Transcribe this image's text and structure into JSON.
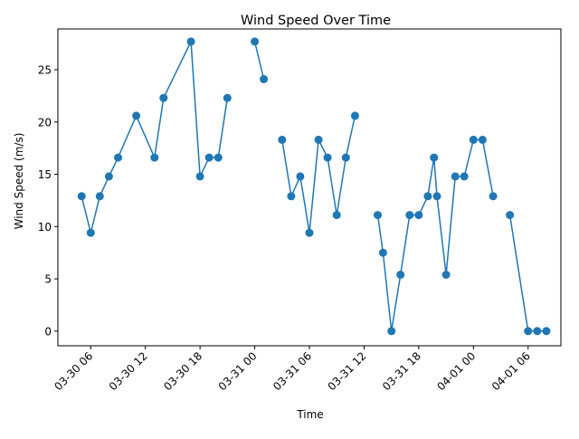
{
  "chart_data": {
    "type": "line",
    "title": "Wind Speed Over Time",
    "xlabel": "Time",
    "ylabel": "Wind Speed (m/s)",
    "xlim": [
      "2024-03-30 02:24",
      "2024-04-01 09:36"
    ],
    "ylim": [
      -1.4,
      28.9
    ],
    "grid": false,
    "x_ticks": [
      {
        "t": "2024-03-30 06:00",
        "label": "03-30 06"
      },
      {
        "t": "2024-03-30 12:00",
        "label": "03-30 12"
      },
      {
        "t": "2024-03-30 18:00",
        "label": "03-30 18"
      },
      {
        "t": "2024-03-31 00:00",
        "label": "03-31 00"
      },
      {
        "t": "2024-03-31 06:00",
        "label": "03-31 06"
      },
      {
        "t": "2024-03-31 12:00",
        "label": "03-31 12"
      },
      {
        "t": "2024-03-31 18:00",
        "label": "03-31 18"
      },
      {
        "t": "2024-04-01 00:00",
        "label": "04-01 00"
      },
      {
        "t": "2024-04-01 06:00",
        "label": "04-01 06"
      }
    ],
    "y_ticks": [
      0,
      5,
      10,
      15,
      20,
      25
    ],
    "series": [
      {
        "color": "#1f77b4",
        "segments": [
          [
            {
              "x": "2024-03-30 05:00",
              "y": 12.9
            },
            {
              "x": "2024-03-30 06:00",
              "y": 9.4
            },
            {
              "x": "2024-03-30 07:00",
              "y": 12.9
            },
            {
              "x": "2024-03-30 08:00",
              "y": 14.8
            },
            {
              "x": "2024-03-30 09:00",
              "y": 16.6
            },
            {
              "x": "2024-03-30 11:00",
              "y": 20.6
            },
            {
              "x": "2024-03-30 13:00",
              "y": 16.6
            },
            {
              "x": "2024-03-30 14:00",
              "y": 22.3
            },
            {
              "x": "2024-03-30 17:00",
              "y": 27.7
            },
            {
              "x": "2024-03-30 18:00",
              "y": 14.8
            },
            {
              "x": "2024-03-30 19:00",
              "y": 16.6
            },
            {
              "x": "2024-03-30 20:00",
              "y": 16.6
            },
            {
              "x": "2024-03-30 21:00",
              "y": 22.3
            }
          ],
          [
            {
              "x": "2024-03-31 00:00",
              "y": 27.7
            },
            {
              "x": "2024-03-31 01:00",
              "y": 24.1
            }
          ],
          [
            {
              "x": "2024-03-31 03:00",
              "y": 18.3
            },
            {
              "x": "2024-03-31 04:00",
              "y": 12.9
            },
            {
              "x": "2024-03-31 05:00",
              "y": 14.8
            },
            {
              "x": "2024-03-31 06:00",
              "y": 9.4
            },
            {
              "x": "2024-03-31 07:00",
              "y": 18.3
            },
            {
              "x": "2024-03-31 08:00",
              "y": 16.6
            },
            {
              "x": "2024-03-31 09:00",
              "y": 11.1
            },
            {
              "x": "2024-03-31 10:00",
              "y": 16.6
            },
            {
              "x": "2024-03-31 11:00",
              "y": 20.6
            }
          ],
          [
            {
              "x": "2024-03-31 13:30",
              "y": 11.1
            },
            {
              "x": "2024-03-31 14:05",
              "y": 7.5
            },
            {
              "x": "2024-03-31 15:00",
              "y": 0.0
            },
            {
              "x": "2024-03-31 16:00",
              "y": 5.4
            },
            {
              "x": "2024-03-31 17:00",
              "y": 11.1
            },
            {
              "x": "2024-03-31 18:00",
              "y": 11.1
            },
            {
              "x": "2024-03-31 19:00",
              "y": 12.9
            },
            {
              "x": "2024-03-31 19:40",
              "y": 16.6
            },
            {
              "x": "2024-03-31 20:00",
              "y": 12.9
            },
            {
              "x": "2024-03-31 21:00",
              "y": 5.4
            },
            {
              "x": "2024-03-31 22:00",
              "y": 14.8
            },
            {
              "x": "2024-03-31 23:00",
              "y": 14.8
            },
            {
              "x": "2024-04-01 00:00",
              "y": 18.3
            },
            {
              "x": "2024-04-01 01:00",
              "y": 18.3
            },
            {
              "x": "2024-04-01 02:10",
              "y": 12.9
            }
          ],
          [
            {
              "x": "2024-04-01 04:00",
              "y": 11.1
            },
            {
              "x": "2024-04-01 06:00",
              "y": 0.0
            },
            {
              "x": "2024-04-01 07:00",
              "y": 0.0
            },
            {
              "x": "2024-04-01 08:00",
              "y": 0.0
            }
          ]
        ]
      }
    ]
  }
}
